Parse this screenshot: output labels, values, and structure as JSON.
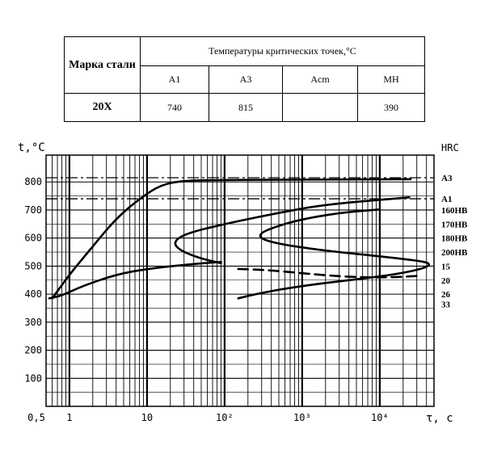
{
  "table": {
    "grade_header": "Марка стали",
    "temps_header": "Температуры критических точек,°С",
    "cols": [
      "A1",
      "A3",
      "Acm",
      "MH"
    ],
    "grade": "20Х",
    "values": [
      "740",
      "815",
      "",
      "390"
    ]
  },
  "chart_data": {
    "type": "line",
    "title": "",
    "ylabel": "t,°C",
    "xlabel": "τ, c",
    "right_label": "HRC",
    "x_scale": "log",
    "xlim": [
      0.5,
      50000
    ],
    "ylim": [
      0,
      850
    ],
    "x_ticks": [
      "0,5",
      "1",
      "10",
      "10²",
      "10³",
      "10⁴"
    ],
    "x_tick_values": [
      0.5,
      1,
      10,
      100,
      1000,
      10000
    ],
    "y_ticks": [
      100,
      200,
      300,
      400,
      500,
      600,
      700,
      800
    ],
    "grid": true,
    "reference_lines": [
      {
        "name": "A3",
        "y": 815
      },
      {
        "name": "A1",
        "y": 740
      }
    ],
    "right_annotations": [
      {
        "label": "A3",
        "y": 815
      },
      {
        "label": "A1",
        "y": 740
      },
      {
        "label": "160HB",
        "y": 700
      },
      {
        "label": "170HB",
        "y": 650
      },
      {
        "label": "180HB",
        "y": 600
      },
      {
        "label": "200HB",
        "y": 550
      },
      {
        "label": "15",
        "y": 500
      },
      {
        "label": "20",
        "y": 450
      },
      {
        "label": "26",
        "y": 400
      },
      {
        "label": "33",
        "y": 365
      }
    ],
    "series": [
      {
        "style": "solid",
        "points": [
          [
            0.6,
            385
          ],
          [
            1,
            470
          ],
          [
            2,
            570
          ],
          [
            4,
            670
          ],
          [
            8,
            740
          ],
          [
            15,
            790
          ],
          [
            30,
            805
          ],
          [
            100,
            807
          ],
          [
            1000,
            808
          ],
          [
            25000,
            810
          ]
        ]
      },
      {
        "style": "solid",
        "points": [
          [
            0.55,
            385
          ],
          [
            0.8,
            395
          ],
          [
            1.5,
            430
          ],
          [
            4,
            470
          ],
          [
            10,
            490
          ],
          [
            30,
            505
          ],
          [
            90,
            515
          ]
        ]
      },
      {
        "style": "solid",
        "points": [
          [
            24000,
            745
          ],
          [
            2000,
            720
          ],
          [
            500,
            690
          ],
          [
            120,
            655
          ],
          [
            35,
            620
          ],
          [
            22,
            590
          ],
          [
            25,
            560
          ],
          [
            45,
            530
          ],
          [
            90,
            510
          ]
        ]
      },
      {
        "style": "solid",
        "points": [
          [
            10000,
            702
          ],
          [
            3000,
            690
          ],
          [
            900,
            665
          ],
          [
            400,
            635
          ],
          [
            280,
            615
          ],
          [
            300,
            595
          ],
          [
            600,
            575
          ],
          [
            2000,
            555
          ],
          [
            10000,
            535
          ],
          [
            30000,
            520
          ],
          [
            45000,
            510
          ],
          [
            40000,
            495
          ],
          [
            20000,
            475
          ],
          [
            6000,
            455
          ],
          [
            2000,
            440
          ],
          [
            600,
            420
          ],
          [
            250,
            400
          ],
          [
            150,
            385
          ]
        ]
      },
      {
        "style": "dashed",
        "points": [
          [
            150,
            490
          ],
          [
            400,
            485
          ],
          [
            1500,
            470
          ],
          [
            5000,
            460
          ],
          [
            15000,
            460
          ],
          [
            30000,
            465
          ]
        ]
      }
    ]
  }
}
